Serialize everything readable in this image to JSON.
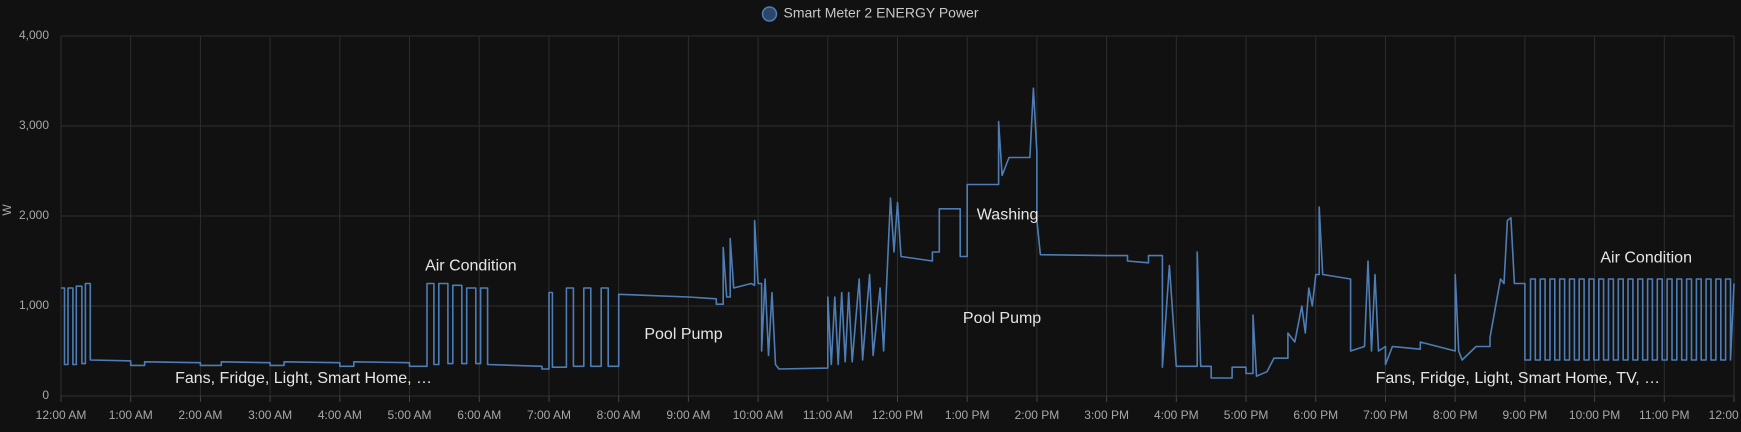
{
  "chart_data": {
    "type": "line",
    "ylabel": "W",
    "xlim": [
      0,
      24
    ],
    "xticks": [
      {
        "value": 0,
        "label": "12:00 AM"
      },
      {
        "value": 1,
        "label": "1:00 AM"
      },
      {
        "value": 2,
        "label": "2:00 AM"
      },
      {
        "value": 3,
        "label": "3:00 AM"
      },
      {
        "value": 4,
        "label": "4:00 AM"
      },
      {
        "value": 5,
        "label": "5:00 AM"
      },
      {
        "value": 6,
        "label": "6:00 AM"
      },
      {
        "value": 7,
        "label": "7:00 AM"
      },
      {
        "value": 8,
        "label": "8:00 AM"
      },
      {
        "value": 9,
        "label": "9:00 AM"
      },
      {
        "value": 10,
        "label": "10:00 AM"
      },
      {
        "value": 11,
        "label": "11:00 AM"
      },
      {
        "value": 12,
        "label": "12:00 PM"
      },
      {
        "value": 13,
        "label": "1:00 PM"
      },
      {
        "value": 14,
        "label": "2:00 PM"
      },
      {
        "value": 15,
        "label": "3:00 PM"
      },
      {
        "value": 16,
        "label": "4:00 PM"
      },
      {
        "value": 17,
        "label": "5:00 PM"
      },
      {
        "value": 18,
        "label": "6:00 PM"
      },
      {
        "value": 19,
        "label": "7:00 PM"
      },
      {
        "value": 20,
        "label": "8:00 PM"
      },
      {
        "value": 21,
        "label": "9:00 PM"
      },
      {
        "value": 22,
        "label": "10:00 PM"
      },
      {
        "value": 23,
        "label": "11:00 PM"
      },
      {
        "value": 24,
        "label": "12:00 AM"
      }
    ],
    "ylim": [
      0,
      4000
    ],
    "yticks": [
      0,
      {
        "value": 1000,
        "label": "1,000"
      },
      {
        "value": 2000,
        "label": "2,000"
      },
      {
        "value": 3000,
        "label": "3,000"
      },
      {
        "value": 4000,
        "label": "4,000"
      }
    ],
    "grid": true,
    "legend": "top",
    "series": [
      {
        "name": "Smart Meter 2 ENERGY Power",
        "color": "#4e7db5",
        "x": [
          0,
          0.05,
          0.05,
          0.1,
          0.1,
          0.17,
          0.17,
          0.22,
          0.22,
          0.3,
          0.3,
          0.35,
          0.35,
          0.42,
          0.42,
          1,
          1,
          1.2,
          1.2,
          2,
          2,
          2.3,
          2.3,
          3,
          3,
          3.2,
          3.2,
          4,
          4,
          4.2,
          4.2,
          5,
          5,
          5.25,
          5.25,
          5.35,
          5.35,
          5.42,
          5.42,
          5.55,
          5.55,
          5.62,
          5.62,
          5.75,
          5.75,
          5.82,
          5.82,
          5.95,
          5.95,
          6.02,
          6.02,
          6.12,
          6.12,
          6.9,
          6.9,
          7,
          7,
          7.05,
          7.05,
          7.25,
          7.25,
          7.35,
          7.35,
          7.5,
          7.5,
          7.6,
          7.6,
          7.75,
          7.75,
          7.85,
          7.85,
          8,
          8,
          9,
          9.4,
          9.4,
          9.5,
          9.5,
          9.55,
          9.6,
          9.6,
          9.65,
          9.9,
          9.95,
          9.95,
          10,
          10.05,
          10.05,
          10.1,
          10.15,
          10.2,
          10.25,
          10.3,
          11,
          11,
          11.05,
          11.1,
          11.15,
          11.2,
          11.25,
          11.3,
          11.35,
          11.45,
          11.5,
          11.6,
          11.65,
          11.75,
          11.8,
          11.9,
          11.95,
          12,
          12.05,
          12.5,
          12.5,
          12.6,
          12.6,
          12.9,
          12.9,
          13,
          13,
          13.45,
          13.45,
          13.5,
          13.6,
          13.9,
          13.95,
          14,
          14,
          14.05,
          15,
          15.3,
          15.3,
          15.6,
          15.6,
          15.8,
          15.8,
          15.9,
          16,
          16.3,
          16.3,
          16.35,
          16.5,
          16.5,
          16.8,
          16.8,
          17,
          17,
          17.1,
          17.1,
          17.15,
          17.3,
          17.4,
          17.6,
          17.6,
          17.7,
          17.8,
          17.85,
          17.9,
          17.95,
          18,
          18.05,
          18.05,
          18.1,
          18.5,
          18.5,
          18.7,
          18.75,
          18.8,
          18.85,
          18.9,
          19,
          19,
          19.1,
          19.5,
          19.5,
          20,
          20,
          20.05,
          20.1,
          20.3,
          20.5,
          20.5,
          20.65,
          20.7,
          20.75,
          20.8,
          20.85,
          21,
          21,
          21.08,
          21.08,
          21.08,
          21.15,
          21.15,
          21.22,
          21.22,
          21.29,
          21.29,
          21.36,
          21.36,
          21.43,
          21.43,
          21.5,
          21.5,
          21.57,
          21.57,
          21.64,
          21.64,
          21.71,
          21.71,
          21.78,
          21.78,
          21.85,
          21.85,
          21.92,
          21.92,
          21.99,
          21.99,
          22.06,
          22.06,
          22.13,
          22.13,
          22.2,
          22.2,
          22.27,
          22.27,
          22.34,
          22.34,
          22.41,
          22.41,
          22.48,
          22.48,
          22.55,
          22.55,
          22.62,
          22.62,
          22.69,
          22.69,
          22.76,
          22.76,
          22.83,
          22.83,
          22.9,
          22.9,
          22.97,
          22.97,
          23.04,
          23.04,
          23.11,
          23.11,
          23.18,
          23.18,
          23.25,
          23.25,
          23.32,
          23.32,
          23.39,
          23.39,
          23.46,
          23.46,
          23.53,
          23.53,
          23.6,
          23.6,
          23.67,
          23.67,
          23.74,
          23.74,
          23.81,
          23.81,
          23.88,
          23.88,
          23.95,
          23.95,
          24
        ],
        "values": [
          1200,
          1200,
          350,
          350,
          1200,
          1200,
          350,
          350,
          1220,
          1220,
          360,
          360,
          1250,
          1250,
          400,
          390,
          340,
          340,
          380,
          370,
          340,
          340,
          380,
          370,
          340,
          340,
          380,
          370,
          330,
          330,
          380,
          370,
          330,
          330,
          1250,
          1250,
          350,
          350,
          1250,
          1250,
          360,
          360,
          1230,
          1230,
          360,
          360,
          1200,
          1200,
          360,
          360,
          1200,
          1200,
          350,
          330,
          300,
          300,
          1150,
          1150,
          320,
          320,
          1200,
          1200,
          330,
          330,
          1200,
          1200,
          330,
          330,
          1200,
          1200,
          330,
          330,
          1130,
          1100,
          1080,
          1020,
          1020,
          1650,
          1100,
          1100,
          1750,
          1200,
          1250,
          1230,
          1950,
          1250,
          1250,
          500,
          1300,
          450,
          1150,
          350,
          300,
          310,
          1100,
          350,
          1100,
          350,
          1150,
          380,
          1150,
          380,
          1300,
          400,
          1350,
          450,
          1200,
          500,
          2200,
          1600,
          2150,
          1550,
          1500,
          1600,
          1600,
          2080,
          2080,
          1550,
          1550,
          2350,
          2350,
          3050,
          2450,
          2650,
          2650,
          3420,
          2700,
          1950,
          1570,
          1560,
          1560,
          1500,
          1480,
          1560,
          1560,
          320,
          1450,
          330,
          330,
          1600,
          330,
          330,
          200,
          200,
          320,
          320,
          250,
          250,
          900,
          220,
          270,
          420,
          420,
          700,
          600,
          1000,
          700,
          1200,
          1000,
          1350,
          1350,
          2100,
          1350,
          1300,
          500,
          550,
          1500,
          500,
          1350,
          500,
          550,
          350,
          550,
          520,
          600,
          500,
          1350,
          500,
          400,
          550,
          550,
          650,
          1300,
          1250,
          1950,
          1980,
          1250,
          1250,
          400,
          400,
          400,
          1300,
          1300,
          400,
          400,
          1300,
          1300,
          400,
          400,
          1300,
          1300,
          400,
          400,
          1300,
          1300,
          400,
          400,
          1300,
          1300,
          400,
          400,
          1300,
          1300,
          400,
          400,
          1300,
          1300,
          400,
          400,
          1300,
          1300,
          400,
          400,
          1300,
          1300,
          400,
          400,
          1300,
          1300,
          400,
          400,
          1300,
          1300,
          400,
          400,
          1300,
          1300,
          400,
          400,
          1300,
          1300,
          400,
          400,
          1300,
          1300,
          400,
          400,
          1300,
          1300,
          400,
          400,
          1300,
          1300,
          400,
          400,
          1300,
          1300,
          400,
          400,
          1300,
          1300,
          400,
          400,
          1300,
          1300,
          400,
          400,
          1300,
          1300,
          400,
          400,
          1300,
          1300,
          400,
          1250
        ]
      }
    ],
    "annotations": [
      {
        "text": "Fans, Fridge, Light, Smart Home, …",
        "x": 3.48,
        "y": 190
      },
      {
        "text": "Air Condition",
        "x": 5.88,
        "y": 1440
      },
      {
        "text": "Pool Pump",
        "x": 8.93,
        "y": 680
      },
      {
        "text": "Washing",
        "x": 13.58,
        "y": 2010
      },
      {
        "text": "Pool Pump",
        "x": 13.5,
        "y": 860
      },
      {
        "text": "Fans, Fridge, Light, Smart Home, TV, …",
        "x": 20.9,
        "y": 190
      },
      {
        "text": "Air Condition",
        "x": 22.74,
        "y": 1530
      }
    ]
  }
}
